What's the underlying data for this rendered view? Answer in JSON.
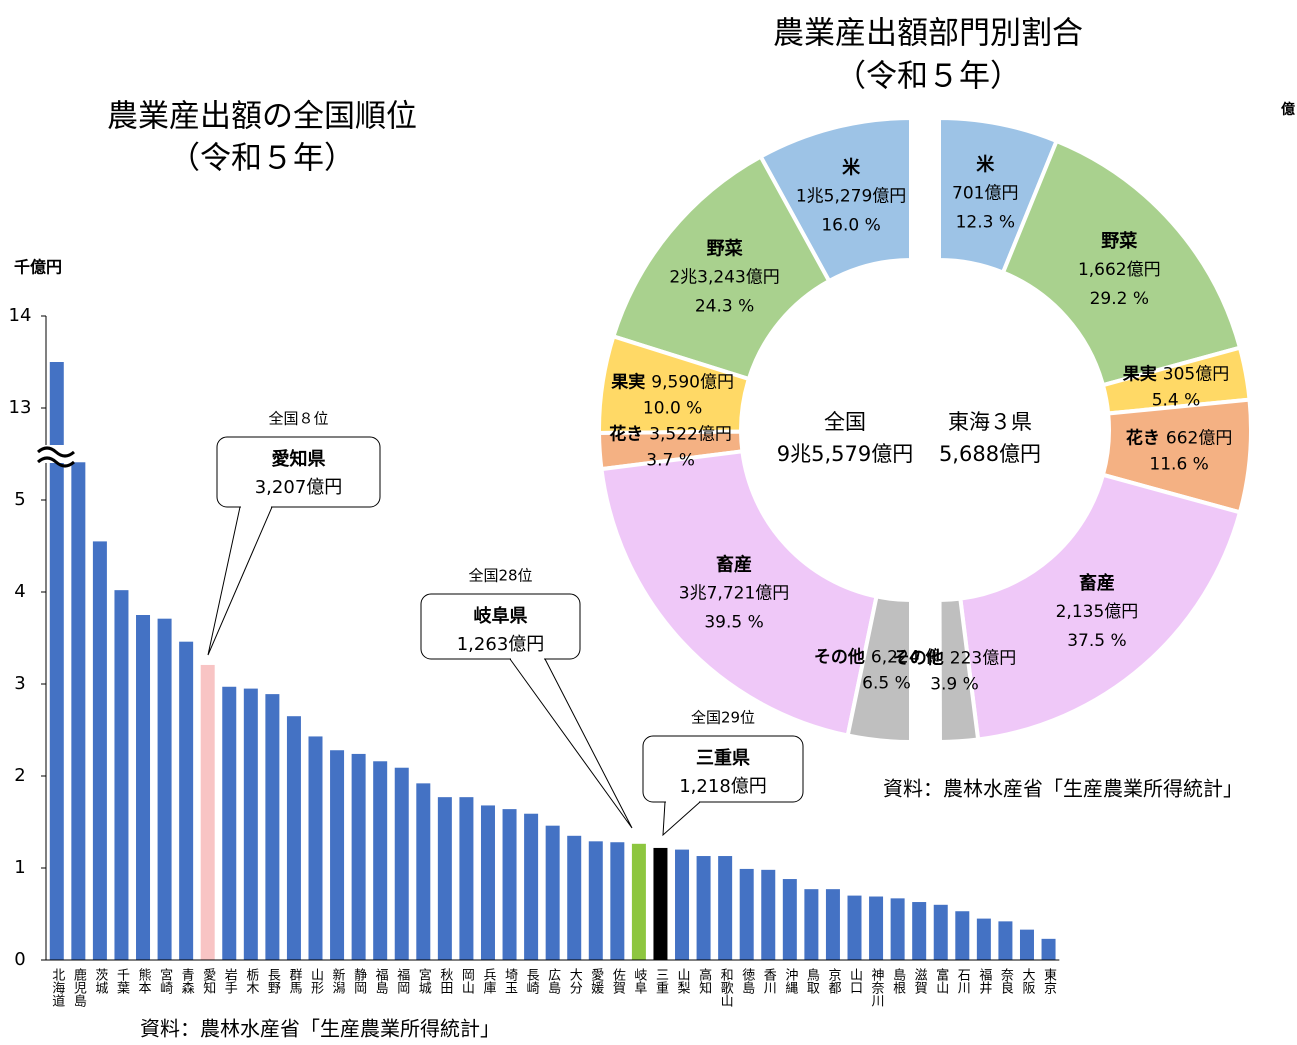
{
  "chart_data": [
    {
      "type": "bar",
      "title": "農業産出額の全国順位",
      "subtitle": "（令和５年）",
      "y_label": "千億円",
      "categories": [
        "北海道",
        "鹿児島",
        "茨城",
        "千葉",
        "熊本",
        "宮崎",
        "青森",
        "愛知",
        "岩手",
        "栃木",
        "長野",
        "群馬",
        "山形",
        "新潟",
        "静岡",
        "福島",
        "福岡",
        "宮城",
        "秋田",
        "岡山",
        "兵庫",
        "埼玉",
        "長崎",
        "広島",
        "大分",
        "愛媛",
        "佐賀",
        "岐阜",
        "三重",
        "山梨",
        "高知",
        "和歌山",
        "徳島",
        "香川",
        "沖縄",
        "鳥取",
        "京都",
        "山口",
        "神奈川",
        "島根",
        "滋賀",
        "富山",
        "石川",
        "福井",
        "奈良",
        "大阪",
        "東京"
      ],
      "values": [
        13.5,
        5.41,
        4.55,
        4.02,
        3.75,
        3.71,
        3.46,
        3.207,
        2.97,
        2.95,
        2.89,
        2.65,
        2.43,
        2.28,
        2.24,
        2.16,
        2.09,
        1.92,
        1.77,
        1.77,
        1.68,
        1.64,
        1.59,
        1.46,
        1.35,
        1.29,
        1.28,
        1.263,
        1.218,
        1.2,
        1.13,
        1.13,
        0.99,
        0.98,
        0.88,
        0.77,
        0.77,
        0.7,
        0.69,
        0.67,
        0.63,
        0.6,
        0.53,
        0.45,
        0.42,
        0.33,
        0.23
      ],
      "colors": [
        "#4472c4",
        "#4472c4",
        "#4472c4",
        "#4472c4",
        "#4472c4",
        "#4472c4",
        "#4472c4",
        "#f8c4c4",
        "#4472c4",
        "#4472c4",
        "#4472c4",
        "#4472c4",
        "#4472c4",
        "#4472c4",
        "#4472c4",
        "#4472c4",
        "#4472c4",
        "#4472c4",
        "#4472c4",
        "#4472c4",
        "#4472c4",
        "#4472c4",
        "#4472c4",
        "#4472c4",
        "#4472c4",
        "#4472c4",
        "#4472c4",
        "#8dc63f",
        "#000000",
        "#4472c4",
        "#4472c4",
        "#4472c4",
        "#4472c4",
        "#4472c4",
        "#4472c4",
        "#4472c4",
        "#4472c4",
        "#4472c4",
        "#4472c4",
        "#4472c4",
        "#4472c4",
        "#4472c4",
        "#4472c4",
        "#4472c4",
        "#4472c4",
        "#4472c4",
        "#4472c4"
      ],
      "ylim": [
        0,
        14
      ],
      "yticks": [
        0,
        1,
        2,
        3,
        4,
        5,
        13,
        14
      ],
      "axis_break": [
        6,
        13
      ],
      "annotations": [
        {
          "rank": "全国８位",
          "name": "愛知県",
          "value_label": "3,207億円"
        },
        {
          "rank": "全国28位",
          "name": "岐阜県",
          "value_label": "1,263億円"
        },
        {
          "rank": "全国29位",
          "name": "三重県",
          "value_label": "1,218億円"
        }
      ],
      "source": "資料：農林水産省「生産農業所得統計」"
    },
    {
      "type": "donut",
      "title": "農業産出額部門別割合",
      "subtitle": "（令和５年）",
      "categories": [
        "米",
        "野菜",
        "果実",
        "花き",
        "畜産",
        "その他"
      ],
      "colors": [
        "#9dc3e6",
        "#a9d18e",
        "#ffd966",
        "#f4b183",
        "#efc8f8",
        "#bfbfbf"
      ],
      "series": [
        {
          "name": "全国",
          "total_label": "9兆5,579億円",
          "values": [
            16.0,
            24.3,
            10.0,
            3.7,
            39.5,
            6.5
          ],
          "value_labels": [
            "16.0 %",
            "24.3 %",
            "10.0 %",
            "3.7 %",
            "39.5 %",
            "6.5 %"
          ],
          "amount_labels": [
            "1兆5,279億円",
            "2兆3,243億円",
            "9,590億円",
            "3,522億円",
            "3兆7,721億円",
            "6,224 億円"
          ]
        },
        {
          "name": "東海３県",
          "total_label": "5,688億円",
          "values": [
            12.3,
            29.2,
            5.4,
            11.6,
            37.5,
            3.9
          ],
          "value_labels": [
            "12.3 %",
            "29.2 %",
            "5.4 %",
            "11.6 %",
            "37.5 %",
            "3.9 %"
          ],
          "amount_labels": [
            "701億円",
            "1,662億円",
            "305億円",
            "662億円",
            "2,135億円",
            "223億円"
          ]
        }
      ],
      "source": "資料：農林水産省「生産農業所得統計」"
    }
  ],
  "edge_text": "億"
}
